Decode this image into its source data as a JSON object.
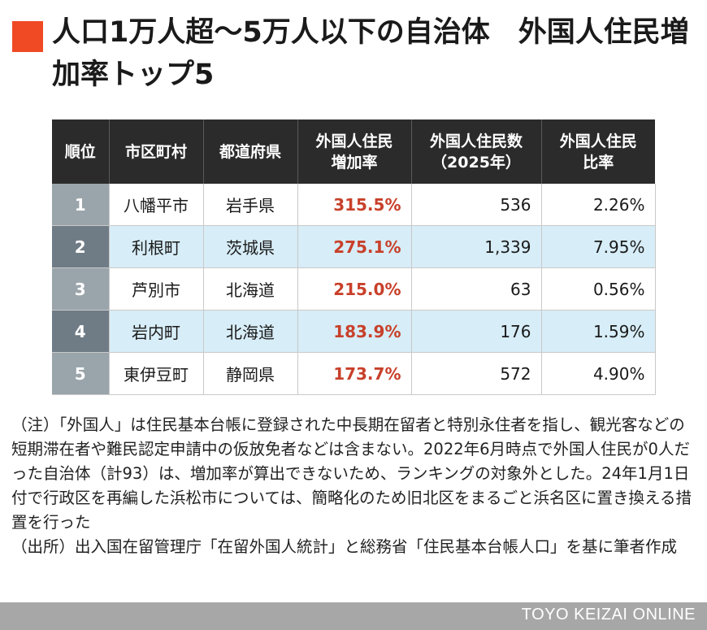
{
  "accent_color": "#ef4a23",
  "rate_color": "#c8402a",
  "title": "人口1万人超〜5万人以下の自治体　外国人住民増加率トップ5",
  "table": {
    "headers": [
      "順位",
      "市区町村",
      "都道府県",
      "外国人住民\n増加率",
      "外国人住民数\n（2025年）",
      "外国人住民\n比率"
    ],
    "rows": [
      {
        "rank": "1",
        "city": "八幡平市",
        "prefecture": "岩手県",
        "growth": "315.5%",
        "residents": "536",
        "ratio": "2.26%"
      },
      {
        "rank": "2",
        "city": "利根町",
        "prefecture": "茨城県",
        "growth": "275.1%",
        "residents": "1,339",
        "ratio": "7.95%"
      },
      {
        "rank": "3",
        "city": "芦別市",
        "prefecture": "北海道",
        "growth": "215.0%",
        "residents": "63",
        "ratio": "0.56%"
      },
      {
        "rank": "4",
        "city": "岩内町",
        "prefecture": "北海道",
        "growth": "183.9%",
        "residents": "176",
        "ratio": "1.59%"
      },
      {
        "rank": "5",
        "city": "東伊豆町",
        "prefecture": "静岡県",
        "growth": "173.7%",
        "residents": "572",
        "ratio": "4.90%"
      }
    ]
  },
  "chart_data": {
    "type": "table",
    "title": "人口1万人超〜5万人以下の自治体　外国人住民増加率トップ5",
    "columns": [
      "順位",
      "市区町村",
      "都道府県",
      "外国人住民増加率",
      "外国人住民数（2025年）",
      "外国人住民比率"
    ],
    "rows": [
      [
        1,
        "八幡平市",
        "岩手県",
        315.5,
        536,
        2.26
      ],
      [
        2,
        "利根町",
        "茨城県",
        275.1,
        1339,
        7.95
      ],
      [
        3,
        "芦別市",
        "北海道",
        215.0,
        63,
        0.56
      ],
      [
        4,
        "岩内町",
        "北海道",
        183.9,
        176,
        1.59
      ],
      [
        5,
        "東伊豆町",
        "静岡県",
        173.7,
        572,
        4.9
      ]
    ]
  },
  "notes": {
    "note": "（注）「外国人」は住民基本台帳に登録された中長期在留者と特別永住者を指し、観光客などの短期滞在者や難民認定申請中の仮放免者などは含まない。2022年6月時点で外国人住民が0人だった自治体（計93）は、増加率が算出できないため、ランキングの対象外とした。24年1月1日付で行政区を再編した浜松市については、簡略化のため旧北区をまるごと浜名区に置き換える措置を行った",
    "source": "（出所）出入国在留管理庁「在留外国人統計」と総務省「住民基本台帳人口」を基に筆者作成"
  },
  "footer": {
    "brand": "TOYO KEIZAI ONLINE"
  }
}
